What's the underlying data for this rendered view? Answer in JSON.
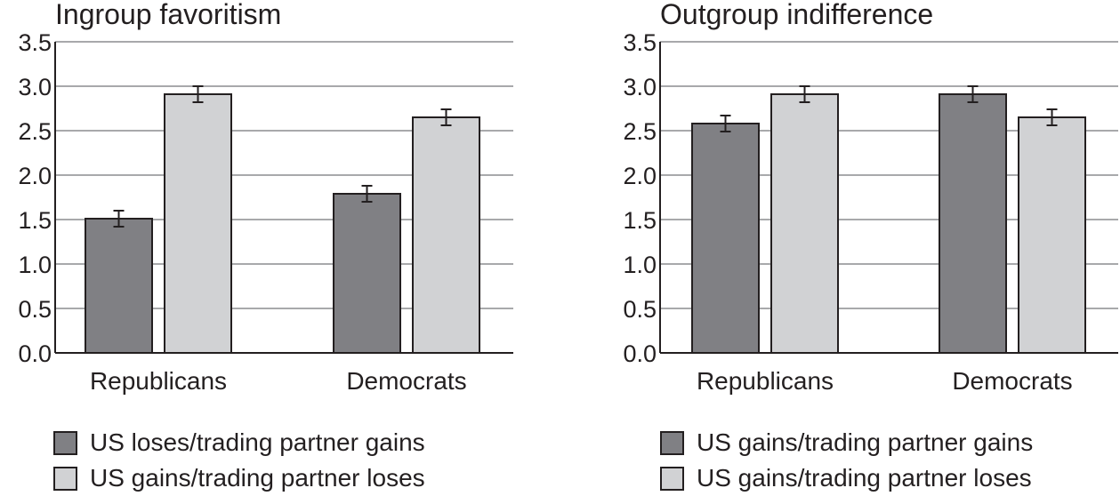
{
  "colors": {
    "dark_bar": "#808084",
    "light_bar": "#d1d2d4",
    "stroke": "#231f20",
    "grid": "#a8a9ab"
  },
  "chart_data": [
    {
      "type": "bar",
      "title": "Ingroup favoritism",
      "categories": [
        "Republicans",
        "Democrats"
      ],
      "yticks": [
        "0.0",
        "0.5",
        "1.0",
        "1.5",
        "2.0",
        "2.5",
        "3.0",
        "3.5"
      ],
      "ylim": [
        0,
        3.5
      ],
      "grid": true,
      "legend_position": "bottom",
      "series": [
        {
          "name": "US loses/trading partner gains",
          "color": "#808084",
          "values": [
            1.51,
            1.79
          ],
          "errors": [
            0.09,
            0.09
          ]
        },
        {
          "name": "US gains/trading partner loses",
          "color": "#d1d2d4",
          "values": [
            2.91,
            2.65
          ],
          "errors": [
            0.09,
            0.09
          ]
        }
      ]
    },
    {
      "type": "bar",
      "title": "Outgroup indifference",
      "categories": [
        "Republicans",
        "Democrats"
      ],
      "yticks": [
        "0.0",
        "0.5",
        "1.0",
        "1.5",
        "2.0",
        "2.5",
        "3.0",
        "3.5"
      ],
      "ylim": [
        0,
        3.5
      ],
      "grid": true,
      "legend_position": "bottom",
      "series": [
        {
          "name": "US gains/trading partner gains",
          "color": "#808084",
          "values": [
            2.58,
            2.91
          ],
          "errors": [
            0.09,
            0.09
          ]
        },
        {
          "name": "US gains/trading partner loses",
          "color": "#d1d2d4",
          "values": [
            2.91,
            2.65
          ],
          "errors": [
            0.09,
            0.09
          ]
        }
      ]
    }
  ]
}
